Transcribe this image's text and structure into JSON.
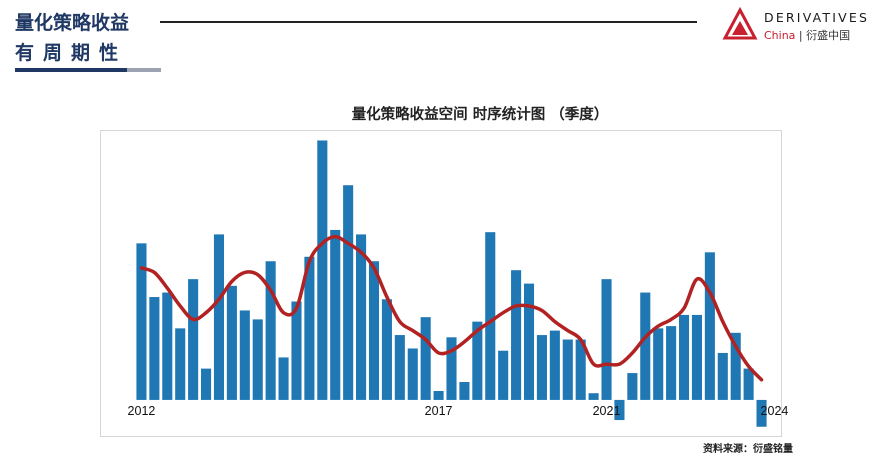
{
  "header": {
    "title": "量化策略收益",
    "subtitle": "有周期性"
  },
  "logo": {
    "wordmark": "DERIVATIVES",
    "sub_en": "China",
    "sub_sep": "|",
    "sub_cn": "衍盛中国"
  },
  "colors": {
    "brand_navy": "#1f3864",
    "bar": "#1f77b4",
    "trend": "#b22222",
    "logo_red": "#c8202f"
  },
  "source_note": "资料来源：衍盛铭量",
  "chart_data": {
    "type": "bar",
    "title": "量化策略收益空间 时序统计图 （季度）",
    "xlabel": "",
    "ylabel": "",
    "ylim": [
      -0.65,
      5.9
    ],
    "year_labels": [
      {
        "index": 0,
        "label": "2012"
      },
      {
        "index": 23,
        "label": "2017"
      },
      {
        "index": 36,
        "label": "2021"
      },
      {
        "index": 49,
        "label": "2024"
      }
    ],
    "values": [
      3.5,
      2.3,
      2.4,
      1.6,
      2.7,
      0.7,
      3.7,
      2.55,
      2.0,
      1.8,
      3.1,
      0.95,
      2.2,
      3.2,
      5.8,
      3.8,
      4.8,
      3.7,
      3.1,
      2.25,
      1.45,
      1.15,
      1.85,
      0.2,
      1.4,
      0.4,
      1.75,
      3.75,
      1.1,
      2.9,
      2.6,
      1.45,
      1.55,
      1.35,
      1.35,
      0.15,
      2.7,
      -0.45,
      0.6,
      2.4,
      1.6,
      1.65,
      1.9,
      1.9,
      3.3,
      1.05,
      1.5,
      0.7,
      -0.6
    ],
    "series": [
      {
        "type": "line",
        "values": [
          2.95,
          2.85,
          2.5,
          2.1,
          1.8,
          1.95,
          2.25,
          2.65,
          2.85,
          2.8,
          2.45,
          1.95,
          2.05,
          3.1,
          3.5,
          3.65,
          3.5,
          3.3,
          2.95,
          2.3,
          1.75,
          1.55,
          1.35,
          1.05,
          1.1,
          1.3,
          1.55,
          1.75,
          1.95,
          2.1,
          2.1,
          2.0,
          1.75,
          1.55,
          1.35,
          0.8,
          0.8,
          0.8,
          1.05,
          1.4,
          1.65,
          1.8,
          2.05,
          2.7,
          2.4,
          1.75,
          1.2,
          0.75,
          0.45
        ]
      }
    ]
  }
}
